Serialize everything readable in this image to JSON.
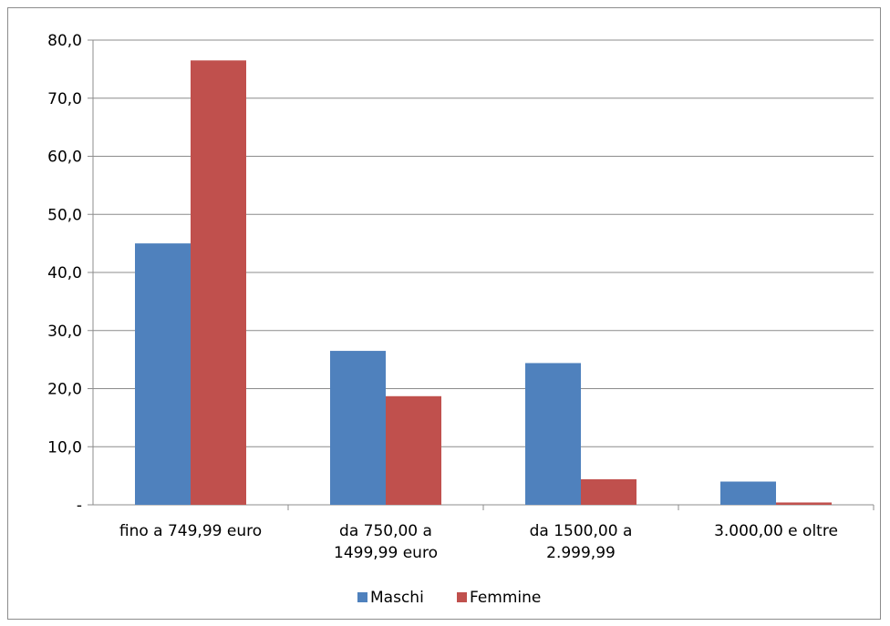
{
  "chart_data": {
    "type": "bar",
    "categories": [
      [
        "fino a 749,99 euro"
      ],
      [
        "da 750,00 a",
        "1499,99 euro"
      ],
      [
        "da 1500,00 a",
        "2.999,99"
      ],
      [
        "3.000,00 e oltre"
      ]
    ],
    "series": [
      {
        "name": "Maschi",
        "color": "#4f81bd",
        "values": [
          45.0,
          26.5,
          24.4,
          4.0
        ]
      },
      {
        "name": "Femmine",
        "color": "#c0504d",
        "values": [
          76.5,
          18.7,
          4.4,
          0.4
        ]
      }
    ],
    "y_ticks": [
      "-",
      "10,0",
      "20,0",
      "30,0",
      "40,0",
      "50,0",
      "60,0",
      "70,0",
      "80,0"
    ],
    "ylim": [
      0,
      80
    ],
    "grid": true,
    "legend_position": "bottom"
  }
}
